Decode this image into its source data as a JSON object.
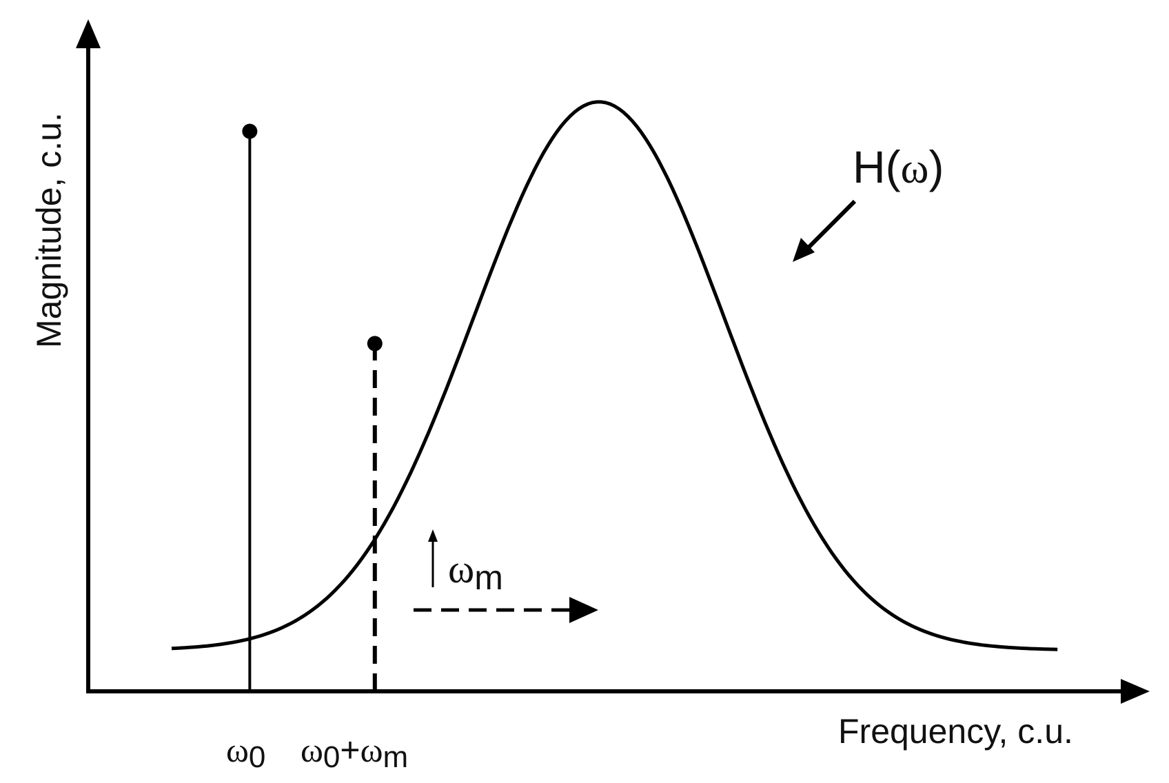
{
  "axes": {
    "ylabel": "Magnitude, c.u.",
    "xlabel": "Frequency, c.u."
  },
  "curve": {
    "label_main": "H(",
    "label_omega": "ω",
    "label_close": ")"
  },
  "ticks": {
    "w0": {
      "sym": "ω",
      "sub": "0"
    },
    "w0wm": {
      "sym": "ω",
      "sub": "0",
      "plus": "+",
      "sym2": "ω",
      "sub2": "m"
    }
  },
  "shift_label": {
    "sym": "ω",
    "sub": "m"
  },
  "chart_data": {
    "type": "line",
    "title": "",
    "xlabel": "Frequency, c.u.",
    "ylabel": "Magnitude, c.u.",
    "series": [
      {
        "name": "H(ω)",
        "kind": "gaussian",
        "center": 0.49,
        "width": 0.17,
        "peak": 1.0,
        "baseline": 0.07,
        "x_range": [
          0.08,
          0.93
        ]
      },
      {
        "name": "",
        "kind": "stem",
        "style": "solid",
        "x": 0.155,
        "y": 0.95
      },
      {
        "name": "",
        "kind": "stem",
        "style": "dashed",
        "x": 0.275,
        "y": 0.59
      }
    ],
    "xlim": [
      0,
      1
    ],
    "ylim": [
      0,
      1.05
    ],
    "grid": false
  }
}
